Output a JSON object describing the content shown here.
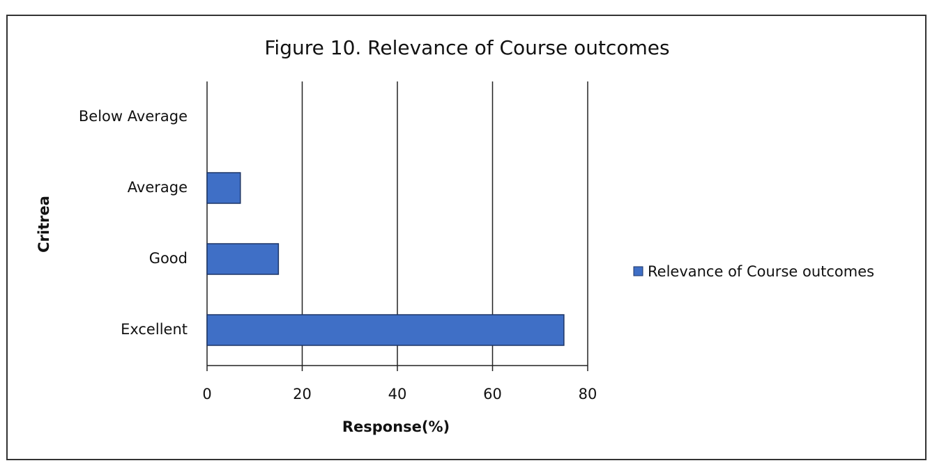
{
  "chart_data": {
    "type": "bar",
    "orientation": "horizontal",
    "title": "Figure 10. Relevance of Course outcomes",
    "x_label": "Response(%)",
    "y_label": "Critrea",
    "categories": [
      "Below Average",
      "Average",
      "Good",
      "Excellent"
    ],
    "series": [
      {
        "name": "Relevance of Course outcomes",
        "color": "#3f6fc6",
        "values": [
          0,
          7,
          15,
          75
        ]
      }
    ],
    "xlim": [
      0,
      80
    ],
    "xticks": [
      0,
      20,
      40,
      60,
      80
    ],
    "grid": true,
    "legend": "right"
  }
}
